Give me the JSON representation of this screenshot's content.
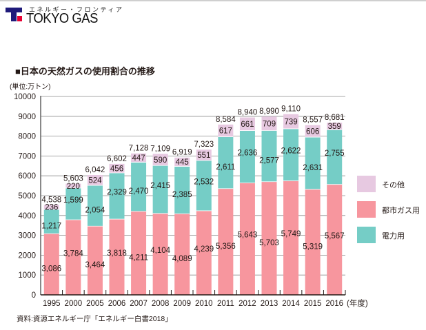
{
  "header": {
    "logo_tagline": "エネルギー・フロンティア",
    "logo_name": "TOKYO GAS",
    "logo_colors": {
      "blue": "#1f1a7a",
      "red": "#e60033"
    }
  },
  "chart_data": {
    "type": "bar",
    "stacked": true,
    "title": "■日本の天然ガスの使用割合の推移",
    "ylabel": "(単位:万トン)",
    "xlabel": "(年度)",
    "ylim": [
      0,
      10000
    ],
    "yticks": [
      "0",
      "1000",
      "2000",
      "3000",
      "4000",
      "5000",
      "6000",
      "7000",
      "8000",
      "9000",
      "10000"
    ],
    "grid": true,
    "legend_position": "right",
    "categories": [
      "1995",
      "2000",
      "2005",
      "2006",
      "2007",
      "2008",
      "2009",
      "2010",
      "2011",
      "2012",
      "2013",
      "2014",
      "2015",
      "2016"
    ],
    "series": [
      {
        "name": "都市ガス用",
        "color": "#f7969e",
        "values": [
          3086,
          3784,
          3464,
          3818,
          4211,
          4104,
          4089,
          4239,
          5356,
          5643,
          5703,
          5749,
          5319,
          5567
        ],
        "labels": [
          "3,086",
          "3,784",
          "3,464",
          "3,818",
          "4,211",
          "4,104",
          "4,089",
          "4,239",
          "5,356",
          "5,643",
          "5,703",
          "5,749",
          "5,319",
          "5,567"
        ]
      },
      {
        "name": "電力用",
        "color": "#75cdc6",
        "values": [
          1217,
          1599,
          2054,
          2329,
          2470,
          2415,
          2385,
          2532,
          2611,
          2636,
          2577,
          2622,
          2631,
          2755
        ],
        "labels": [
          "1,217",
          "1,599",
          "2,054",
          "2,329",
          "2,470",
          "2,415",
          "2,385",
          "2,532",
          "2,611",
          "2,636",
          "2,577",
          "2,622",
          "2,631",
          "2,755"
        ]
      },
      {
        "name": "その他",
        "color": "#e7c9e1",
        "values": [
          236,
          220,
          524,
          456,
          447,
          590,
          445,
          551,
          617,
          661,
          709,
          739,
          606,
          359
        ],
        "labels": [
          "236",
          "220",
          "524",
          "456",
          "447",
          "590",
          "445",
          "551",
          "617",
          "661",
          "709",
          "739",
          "606",
          "359"
        ]
      }
    ],
    "totals": [
      4538,
      5603,
      6042,
      6602,
      7128,
      7109,
      6919,
      7323,
      8584,
      8940,
      8990,
      9110,
      8557,
      8681
    ],
    "total_labels": [
      "4,538",
      "5,603",
      "6,042",
      "6,602",
      "7,128",
      "7,109",
      "6,919",
      "7,323",
      "8,584",
      "8,940",
      "8,990",
      "9,110",
      "8,557",
      "8,681"
    ],
    "legend": [
      {
        "name": "その他",
        "color": "#e7c9e1"
      },
      {
        "name": "都市ガス用",
        "color": "#f7969e"
      },
      {
        "name": "電力用",
        "color": "#75cdc6"
      }
    ],
    "source": "資料:資源エネルギー庁「エネルギー白書2018」"
  }
}
